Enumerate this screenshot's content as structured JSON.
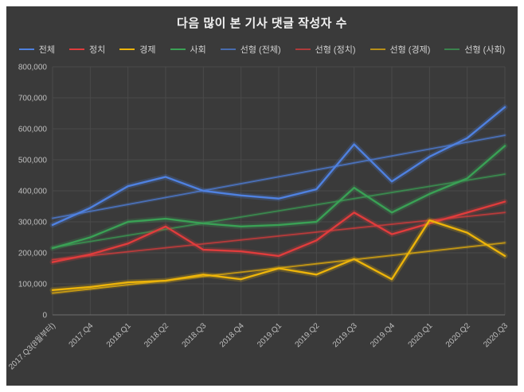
{
  "theme": {
    "outer_bg": "#ffffff",
    "panel_bg": "#3a3a3a",
    "grid_color": "#4a4a4a",
    "axis_color": "#6e6e6e",
    "tick_label_color": "#bfbfbf",
    "title_color": "#f2f2f2",
    "legend_text_color": "#d0d0d0"
  },
  "chart_data": {
    "type": "line",
    "title": "다음 많이 본 기사 댓글 작성자 수",
    "categories": [
      "2017.Q3(8월부터)",
      "2017.Q4",
      "2018.Q1",
      "2018.Q2",
      "2018.Q3",
      "2018.Q4",
      "2019.Q1",
      "2019.Q2",
      "2019.Q3",
      "2019.Q4",
      "2020.Q1",
      "2020.Q2",
      "2020.Q3"
    ],
    "series": [
      {
        "name": "전체",
        "color": "#4f81e0",
        "values": [
          290000,
          345000,
          415000,
          445000,
          400000,
          385000,
          375000,
          405000,
          550000,
          430000,
          510000,
          570000,
          670000
        ]
      },
      {
        "name": "정치",
        "color": "#e03c3c",
        "values": [
          170000,
          195000,
          230000,
          285000,
          210000,
          205000,
          190000,
          240000,
          330000,
          260000,
          295000,
          330000,
          365000
        ]
      },
      {
        "name": "경제",
        "color": "#edb40a",
        "values": [
          80000,
          90000,
          105000,
          110000,
          130000,
          115000,
          150000,
          130000,
          180000,
          115000,
          305000,
          265000,
          190000
        ]
      },
      {
        "name": "사회",
        "color": "#3aa155",
        "values": [
          215000,
          250000,
          300000,
          310000,
          295000,
          285000,
          290000,
          300000,
          410000,
          330000,
          390000,
          440000,
          545000
        ]
      }
    ],
    "trendlines": [
      {
        "name": "선형 (전체)",
        "series": "전체"
      },
      {
        "name": "선형 (정치)",
        "series": "정치"
      },
      {
        "name": "선형 (경제)",
        "series": "경제"
      },
      {
        "name": "선형 (사회)",
        "series": "사회"
      }
    ],
    "ylim": [
      0,
      800000
    ],
    "yticks": [
      0,
      100000,
      200000,
      300000,
      400000,
      500000,
      600000,
      700000,
      800000
    ],
    "grid": true,
    "legend_position": "top"
  }
}
